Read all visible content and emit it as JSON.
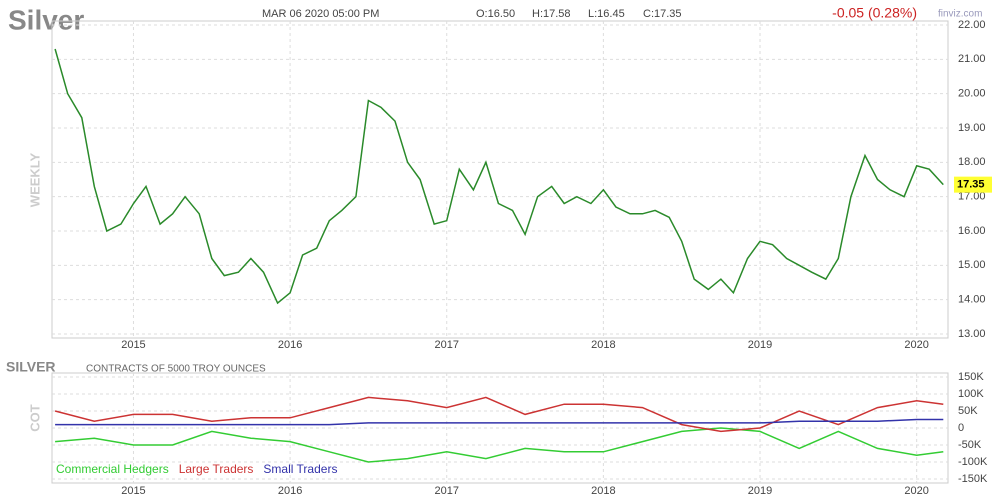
{
  "header": {
    "date": "MAR 06 2020 05:00 PM",
    "open": "O:16.50",
    "high": "H:17.58",
    "low": "L:16.45",
    "close": "C:17.35",
    "change": "-0.05 (0.28%)",
    "source": "finviz.com"
  },
  "chart_data": [
    {
      "type": "line",
      "title": "Silver",
      "y_label": "WEEKLY",
      "color": "#2a8a2a",
      "x": [
        2014.5,
        2014.58,
        2014.67,
        2014.75,
        2014.83,
        2014.92,
        2015.0,
        2015.08,
        2015.17,
        2015.25,
        2015.33,
        2015.42,
        2015.5,
        2015.58,
        2015.67,
        2015.75,
        2015.83,
        2015.92,
        2016.0,
        2016.08,
        2016.17,
        2016.25,
        2016.33,
        2016.42,
        2016.5,
        2016.58,
        2016.67,
        2016.75,
        2016.83,
        2016.92,
        2017.0,
        2017.08,
        2017.17,
        2017.25,
        2017.33,
        2017.42,
        2017.5,
        2017.58,
        2017.67,
        2017.75,
        2017.83,
        2017.92,
        2018.0,
        2018.08,
        2018.17,
        2018.25,
        2018.33,
        2018.42,
        2018.5,
        2018.58,
        2018.67,
        2018.75,
        2018.83,
        2018.92,
        2019.0,
        2019.08,
        2019.17,
        2019.25,
        2019.33,
        2019.42,
        2019.5,
        2019.58,
        2019.67,
        2019.75,
        2019.83,
        2019.92,
        2020.0,
        2020.08,
        2020.17
      ],
      "values": [
        21.3,
        20.0,
        19.3,
        17.3,
        16.0,
        16.2,
        16.8,
        17.3,
        16.2,
        16.5,
        17.0,
        16.5,
        15.2,
        14.7,
        14.8,
        15.2,
        14.8,
        13.9,
        14.2,
        15.3,
        15.5,
        16.3,
        16.6,
        17.0,
        19.8,
        19.6,
        19.2,
        18.0,
        17.5,
        16.2,
        16.3,
        17.8,
        17.2,
        18.0,
        16.8,
        16.6,
        15.9,
        17.0,
        17.3,
        16.8,
        17.0,
        16.8,
        17.2,
        16.7,
        16.5,
        16.5,
        16.6,
        16.4,
        15.7,
        14.6,
        14.3,
        14.6,
        14.2,
        15.2,
        15.7,
        15.6,
        15.2,
        15.0,
        14.8,
        14.6,
        15.2,
        17.0,
        18.2,
        17.5,
        17.2,
        17.0,
        17.9,
        17.8,
        17.35
      ],
      "current_price": {
        "value": 17.35,
        "label": "17.35"
      },
      "xlim": [
        2014.48,
        2020.2
      ],
      "xticks": [
        2015,
        2016,
        2017,
        2018,
        2019,
        2020
      ],
      "ylim": [
        13,
        22
      ],
      "yticks": [
        {
          "value": 13,
          "label": "13.00"
        },
        {
          "value": 14,
          "label": "14.00"
        },
        {
          "value": 15,
          "label": "15.00"
        },
        {
          "value": 16,
          "label": "16.00"
        },
        {
          "value": 17,
          "label": "17.00"
        },
        {
          "value": 18,
          "label": "18.00"
        },
        {
          "value": 19,
          "label": "19.00"
        },
        {
          "value": 20,
          "label": "20.00"
        },
        {
          "value": 21,
          "label": "21.00"
        },
        {
          "value": 22,
          "label": "22.00"
        }
      ],
      "grid": true
    },
    {
      "type": "line",
      "title": "SILVER",
      "subtitle": "CONTRACTS OF 5000 TROY OUNCES",
      "y_label": "COT",
      "legend": "bottom-left",
      "x": [
        2014.5,
        2014.75,
        2015.0,
        2015.25,
        2015.5,
        2015.75,
        2016.0,
        2016.25,
        2016.5,
        2016.75,
        2017.0,
        2017.25,
        2017.5,
        2017.75,
        2018.0,
        2018.25,
        2018.5,
        2018.75,
        2019.0,
        2019.25,
        2019.5,
        2019.75,
        2020.0,
        2020.17
      ],
      "series": [
        {
          "name": "Commercial Hedgers",
          "color": "#33cc33",
          "values": [
            -40000,
            -30000,
            -50000,
            -50000,
            -10000,
            -30000,
            -40000,
            -70000,
            -100000,
            -90000,
            -70000,
            -90000,
            -60000,
            -70000,
            -70000,
            -40000,
            -10000,
            0,
            -10000,
            -60000,
            -10000,
            -60000,
            -80000,
            -70000
          ]
        },
        {
          "name": "Large Traders",
          "color": "#cc3333",
          "values": [
            50000,
            20000,
            40000,
            40000,
            20000,
            30000,
            30000,
            60000,
            90000,
            80000,
            60000,
            90000,
            40000,
            70000,
            70000,
            60000,
            10000,
            -10000,
            0,
            50000,
            10000,
            60000,
            80000,
            70000
          ]
        },
        {
          "name": "Small Traders",
          "color": "#3333aa",
          "values": [
            10000,
            10000,
            10000,
            10000,
            10000,
            10000,
            10000,
            10000,
            15000,
            15000,
            15000,
            15000,
            15000,
            15000,
            15000,
            15000,
            15000,
            15000,
            15000,
            20000,
            20000,
            20000,
            25000,
            25000
          ]
        }
      ],
      "xlim": [
        2014.48,
        2020.2
      ],
      "xticks": [
        2015,
        2016,
        2017,
        2018,
        2019,
        2020
      ],
      "ylim": [
        -150000,
        150000
      ],
      "yticks": [
        {
          "value": -150000,
          "label": "-150K"
        },
        {
          "value": -100000,
          "label": "-100K"
        },
        {
          "value": -50000,
          "label": "-50K"
        },
        {
          "value": 0,
          "label": "0"
        },
        {
          "value": 50000,
          "label": "50K"
        },
        {
          "value": 100000,
          "label": "100K"
        },
        {
          "value": 150000,
          "label": "150K"
        }
      ],
      "grid": true
    }
  ]
}
